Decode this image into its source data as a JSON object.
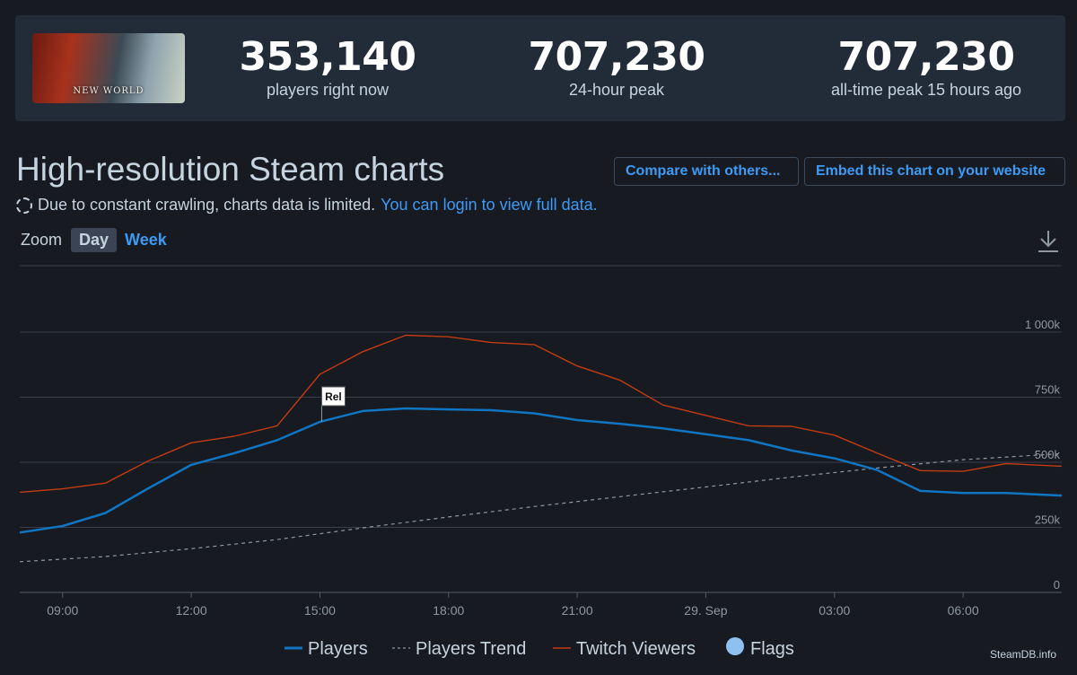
{
  "stats": {
    "logo_text": "NEW WORLD",
    "current": {
      "value": "353,140",
      "label": "players right now"
    },
    "peak24": {
      "value": "707,230",
      "label": "24-hour peak"
    },
    "alltime": {
      "value": "707,230",
      "label": "all-time peak 15 hours ago"
    }
  },
  "header": {
    "title": "High-resolution Steam charts",
    "compare_label": "Compare with others...",
    "embed_label": "Embed this chart on your website"
  },
  "notice": {
    "text": "Due to constant crawling, charts data is limited.",
    "link": "You can login to view full data."
  },
  "zoom": {
    "label": "Zoom",
    "options": [
      "Day",
      "Week"
    ],
    "active": "Day"
  },
  "credit": "SteamDB.info",
  "colors": {
    "players": "#1075c2",
    "trend": "#8f98a0",
    "twitch": "#c23b12",
    "flags": "#8ec1f0",
    "grid": "#3a3f4a"
  },
  "chart_data": {
    "type": "line",
    "x_unit": "hours since 09:00",
    "xlim": [
      -1.0,
      23.3
    ],
    "ylim": [
      0,
      1000000
    ],
    "y_ticks": [
      {
        "v": 0,
        "label": "0"
      },
      {
        "v": 250000,
        "label": "250k"
      },
      {
        "v": 500000,
        "label": "500k"
      },
      {
        "v": 750000,
        "label": "750k"
      },
      {
        "v": 1000000,
        "label": "1 000k"
      }
    ],
    "x_ticks": [
      {
        "x": 0,
        "label": "09:00"
      },
      {
        "x": 3,
        "label": "12:00"
      },
      {
        "x": 6,
        "label": "15:00"
      },
      {
        "x": 9,
        "label": "18:00"
      },
      {
        "x": 12,
        "label": "21:00"
      },
      {
        "x": 15,
        "label": "29. Sep"
      },
      {
        "x": 18,
        "label": "03:00"
      },
      {
        "x": 21,
        "label": "06:00"
      }
    ],
    "series": [
      {
        "name": "Players",
        "style": "solid",
        "x": [
          -1,
          0,
          1,
          2,
          3,
          4,
          5,
          6,
          7,
          8,
          9,
          10,
          11,
          12,
          13,
          14,
          15,
          16,
          17,
          18,
          19,
          20,
          21,
          22,
          23.3
        ],
        "values": [
          230000,
          255000,
          305000,
          400000,
          490000,
          535000,
          585000,
          655000,
          697000,
          707000,
          703000,
          700000,
          688000,
          662000,
          648000,
          630000,
          608000,
          585000,
          545000,
          515000,
          470000,
          390000,
          382000,
          382000,
          372000
        ]
      },
      {
        "name": "Players Trend",
        "style": "dashed",
        "x": [
          -1,
          1,
          3,
          5,
          7,
          9,
          11,
          13,
          15,
          17,
          19,
          21,
          23.3
        ],
        "values": [
          118000,
          138000,
          168000,
          203000,
          248000,
          290000,
          330000,
          368000,
          405000,
          443000,
          478000,
          510000,
          533000
        ]
      },
      {
        "name": "Twitch Viewers",
        "style": "solid",
        "x": [
          -1,
          0,
          1,
          2,
          3,
          4,
          5,
          6,
          7,
          8,
          9,
          10,
          11,
          12,
          13,
          14,
          15,
          16,
          17,
          18,
          19,
          20,
          21,
          22,
          23.3
        ],
        "values": [
          385000,
          398000,
          420000,
          505000,
          575000,
          600000,
          640000,
          838000,
          925000,
          988000,
          982000,
          960000,
          952000,
          870000,
          815000,
          720000,
          680000,
          640000,
          638000,
          604000,
          535000,
          468000,
          465000,
          495000,
          485000
        ]
      }
    ],
    "flags": [
      {
        "x": 6,
        "label": "Rel"
      }
    ],
    "legend": [
      "Players",
      "Players Trend",
      "Twitch Viewers",
      "Flags"
    ]
  }
}
